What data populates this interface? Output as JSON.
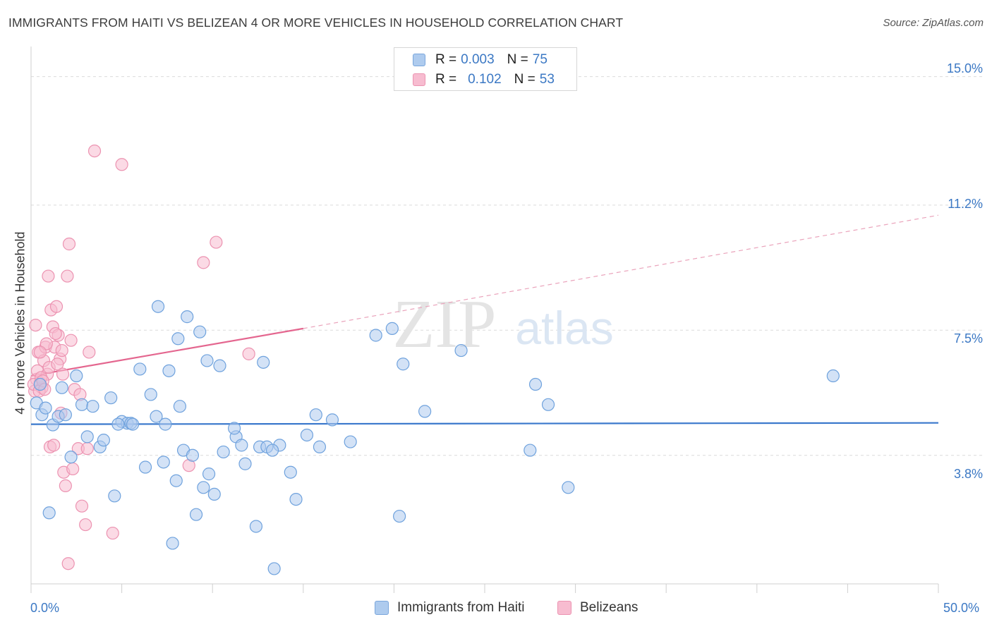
{
  "header": {
    "title": "IMMIGRANTS FROM HAITI VS BELIZEAN 4 OR MORE VEHICLES IN HOUSEHOLD CORRELATION CHART",
    "source": "Source: ZipAtlas.com"
  },
  "watermark": {
    "zip": "ZIP",
    "atlas": "atlas"
  },
  "legend_top": {
    "rows": [
      {
        "r_label": "R =",
        "r_value": "0.003",
        "n_label": "N =",
        "n_value": "75",
        "color": "#aecbee"
      },
      {
        "r_label": "R =",
        "r_value": "0.102",
        "n_label": "N =",
        "n_value": "53",
        "color": "#f7bcd0"
      }
    ]
  },
  "axes": {
    "y_title": "4 or more Vehicles in Household",
    "y_ticks": [
      "15.0%",
      "11.2%",
      "7.5%",
      "3.8%"
    ],
    "x_ticks": [
      "0.0%",
      "50.0%"
    ]
  },
  "legend_bottom": [
    {
      "label": "Immigrants from Haiti",
      "color": "#aecbee"
    },
    {
      "label": "Belizeans",
      "color": "#f7bcd0"
    }
  ],
  "chart_data": {
    "type": "scatter",
    "title": "IMMIGRANTS FROM HAITI VS BELIZEAN 4 OR MORE VEHICLES IN HOUSEHOLD CORRELATION CHART",
    "xlabel": "",
    "ylabel": "4 or more Vehicles in Household",
    "xlim": [
      0,
      50
    ],
    "ylim": [
      0,
      15.7
    ],
    "y_gridlines": [
      3.8,
      7.5,
      11.2,
      15.0
    ],
    "grid": true,
    "legend_position": "top-center",
    "series": [
      {
        "name": "Immigrants from Haiti",
        "color": "#6fa2dd",
        "fill": "#aecbee",
        "trend": {
          "x": [
            0,
            50
          ],
          "y": [
            4.72,
            4.76
          ],
          "style": "solid",
          "color": "#3a78cc"
        },
        "points": [
          [
            0.3,
            5.35
          ],
          [
            0.5,
            5.9
          ],
          [
            0.6,
            5.0
          ],
          [
            0.8,
            5.2
          ],
          [
            1.0,
            2.1
          ],
          [
            1.2,
            4.7
          ],
          [
            1.5,
            4.95
          ],
          [
            1.7,
            5.8
          ],
          [
            1.9,
            5.0
          ],
          [
            2.2,
            3.75
          ],
          [
            2.5,
            6.15
          ],
          [
            2.8,
            5.3
          ],
          [
            3.1,
            4.35
          ],
          [
            3.4,
            5.25
          ],
          [
            3.8,
            4.05
          ],
          [
            4.0,
            4.25
          ],
          [
            4.4,
            5.5
          ],
          [
            4.6,
            2.6
          ],
          [
            5.0,
            4.8
          ],
          [
            5.3,
            4.75
          ],
          [
            5.5,
            4.75
          ],
          [
            6.0,
            6.35
          ],
          [
            6.3,
            3.45
          ],
          [
            6.6,
            5.6
          ],
          [
            6.9,
            4.95
          ],
          [
            7.0,
            8.2
          ],
          [
            7.3,
            3.6
          ],
          [
            7.6,
            6.3
          ],
          [
            7.8,
            1.2
          ],
          [
            8.0,
            3.05
          ],
          [
            8.2,
            5.25
          ],
          [
            8.4,
            3.95
          ],
          [
            8.6,
            7.9
          ],
          [
            8.9,
            3.8
          ],
          [
            9.1,
            2.05
          ],
          [
            9.5,
            2.85
          ],
          [
            9.7,
            6.6
          ],
          [
            9.8,
            3.25
          ],
          [
            10.1,
            2.65
          ],
          [
            10.6,
            3.9
          ],
          [
            11.3,
            4.35
          ],
          [
            11.6,
            4.1
          ],
          [
            11.8,
            3.55
          ],
          [
            12.4,
            1.7
          ],
          [
            12.6,
            4.05
          ],
          [
            13.0,
            4.05
          ],
          [
            13.4,
            0.45
          ],
          [
            13.7,
            4.1
          ],
          [
            14.3,
            3.3
          ],
          [
            14.6,
            2.5
          ],
          [
            15.2,
            4.4
          ],
          [
            15.9,
            4.05
          ],
          [
            16.6,
            4.85
          ],
          [
            17.6,
            4.2
          ],
          [
            19.0,
            7.35
          ],
          [
            19.9,
            7.55
          ],
          [
            20.3,
            2.0
          ],
          [
            21.7,
            5.1
          ],
          [
            23.7,
            6.9
          ],
          [
            27.5,
            3.95
          ],
          [
            27.8,
            5.9
          ],
          [
            28.5,
            5.3
          ],
          [
            29.6,
            2.85
          ],
          [
            44.2,
            6.15
          ],
          [
            4.8,
            4.72
          ],
          [
            5.6,
            4.72
          ],
          [
            7.4,
            4.72
          ],
          [
            9.3,
            7.45
          ],
          [
            8.1,
            7.25
          ],
          [
            11.2,
            4.6
          ],
          [
            15.7,
            5.0
          ],
          [
            13.3,
            3.95
          ],
          [
            12.8,
            6.55
          ],
          [
            20.5,
            6.5
          ],
          [
            10.4,
            6.45
          ]
        ]
      },
      {
        "name": "Belizeans",
        "color": "#ec93b1",
        "fill": "#f7bcd0",
        "trend": {
          "x": [
            0,
            15
          ],
          "y": [
            6.15,
            7.55
          ],
          "x_dashed_end": 50,
          "y_dashed_end": 10.9,
          "style": "solid-then-dashed",
          "color": "#e4668f"
        },
        "points": [
          [
            0.2,
            5.7
          ],
          [
            0.3,
            6.05
          ],
          [
            0.35,
            6.3
          ],
          [
            0.4,
            6.85
          ],
          [
            0.5,
            5.95
          ],
          [
            0.6,
            5.8
          ],
          [
            0.7,
            6.6
          ],
          [
            0.8,
            7.0
          ],
          [
            0.9,
            6.2
          ],
          [
            1.0,
            6.4
          ],
          [
            1.1,
            8.1
          ],
          [
            1.2,
            7.6
          ],
          [
            1.3,
            7.0
          ],
          [
            1.4,
            8.2
          ],
          [
            1.5,
            7.35
          ],
          [
            1.6,
            6.65
          ],
          [
            1.7,
            6.9
          ],
          [
            1.8,
            3.3
          ],
          [
            1.9,
            2.9
          ],
          [
            2.0,
            9.1
          ],
          [
            2.1,
            10.05
          ],
          [
            2.2,
            7.2
          ],
          [
            2.3,
            3.4
          ],
          [
            2.4,
            5.75
          ],
          [
            2.6,
            4.0
          ],
          [
            2.8,
            2.3
          ],
          [
            3.0,
            1.75
          ],
          [
            3.2,
            6.85
          ],
          [
            3.5,
            12.8
          ],
          [
            4.5,
            1.5
          ],
          [
            5.0,
            12.4
          ],
          [
            9.5,
            9.5
          ],
          [
            10.2,
            10.1
          ],
          [
            12.0,
            6.8
          ],
          [
            8.7,
            3.5
          ],
          [
            0.15,
            5.9
          ],
          [
            0.45,
            5.7
          ],
          [
            0.55,
            6.1
          ],
          [
            0.65,
            6.0
          ],
          [
            0.75,
            5.75
          ],
          [
            0.85,
            7.1
          ],
          [
            0.95,
            9.1
          ],
          [
            1.05,
            4.05
          ],
          [
            1.25,
            4.1
          ],
          [
            1.35,
            7.4
          ],
          [
            1.45,
            6.5
          ],
          [
            1.65,
            5.05
          ],
          [
            1.75,
            6.2
          ],
          [
            2.05,
            0.6
          ],
          [
            2.7,
            5.6
          ],
          [
            3.1,
            4.0
          ],
          [
            0.25,
            7.65
          ],
          [
            0.5,
            6.85
          ]
        ]
      }
    ]
  }
}
